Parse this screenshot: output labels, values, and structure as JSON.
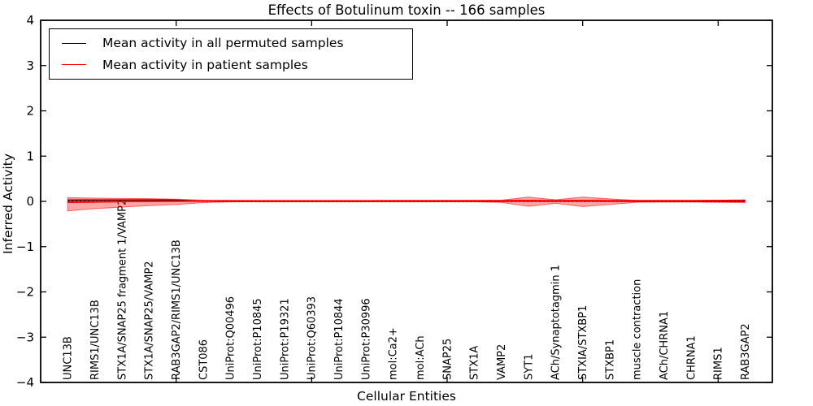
{
  "chart_data": {
    "type": "line",
    "title": "Effects of Botulinum toxin -- 166 samples",
    "xlabel": "Cellular Entities",
    "ylabel": "Inferred Activity",
    "ylim": [
      -4,
      4
    ],
    "xlim": [
      0,
      27
    ],
    "yticks": [
      -4,
      -3,
      -2,
      -1,
      0,
      1,
      2,
      3,
      4
    ],
    "xticks": [
      5,
      10,
      15,
      20,
      25
    ],
    "grid": false,
    "legend_position": "upper left",
    "zero_line": {
      "y": 0,
      "style": "dotted",
      "color": "#000000"
    },
    "categories": [
      "UNC13B",
      "RIMS1/UNC13B",
      "STX1A/SNAP25 fragment 1/VAMP2",
      "STX1A/SNAP25/VAMP2",
      "RAB3GAP2/RIMS1/UNC13B",
      "CST086",
      "UniProt:Q00496",
      "UniProt:P10845",
      "UniProt:P19321",
      "UniProt:Q60393",
      "UniProt:P10844",
      "UniProt:P30996",
      "mol:Ca2+",
      "mol:ACh",
      "SNAP25",
      "STX1A",
      "VAMP2",
      "SYT1",
      "ACh/Synaptotagmin 1",
      "STXIA/STXBP1",
      "STXBP1",
      "muscle contraction",
      "ACh/CHRNA1",
      "CHRNA1",
      "RIMS1",
      "RAB3GAP2"
    ],
    "series": [
      {
        "name": "Mean activity in all permuted samples",
        "color": "#000000",
        "band_color": "rgba(90,90,90,0.45)",
        "values": [
          0.025,
          0.028,
          0.03,
          0.033,
          0.03,
          0.006,
          0.002,
          0.002,
          0.002,
          0.002,
          0.002,
          0.002,
          0.002,
          0.002,
          0.002,
          0.002,
          0.003,
          0.005,
          0.004,
          0.005,
          0.004,
          0.002,
          0.002,
          0.002,
          0.002,
          0.002
        ],
        "band_hi": [
          0.058,
          0.054,
          0.05,
          0.05,
          0.044,
          0.014,
          0.007,
          0.007,
          0.007,
          0.007,
          0.007,
          0.007,
          0.007,
          0.007,
          0.007,
          0.007,
          0.009,
          0.016,
          0.012,
          0.015,
          0.012,
          0.008,
          0.007,
          0.007,
          0.008,
          0.009
        ],
        "band_lo": [
          -0.015,
          -0.008,
          -0.003,
          0.0,
          -0.002,
          -0.004,
          -0.004,
          -0.004,
          -0.004,
          -0.004,
          -0.004,
          -0.004,
          -0.004,
          -0.004,
          -0.004,
          -0.004,
          -0.005,
          -0.008,
          -0.006,
          -0.007,
          -0.006,
          -0.004,
          -0.004,
          -0.004,
          -0.004,
          -0.005
        ]
      },
      {
        "name": "Mean activity in patient samples",
        "color": "#ff0000",
        "band_color": "rgba(255,0,0,0.35)",
        "band_edge_color": "rgba(255,0,0,0.55)",
        "values": [
          -0.02,
          -0.012,
          -0.005,
          0.0,
          0.005,
          0.01,
          0.013,
          0.013,
          0.014,
          0.014,
          0.014,
          0.014,
          0.015,
          0.015,
          0.015,
          0.015,
          0.016,
          0.018,
          0.016,
          0.018,
          0.016,
          0.015,
          0.015,
          0.016,
          0.018,
          0.022
        ],
        "band_hi": [
          0.08,
          0.072,
          0.065,
          0.06,
          0.05,
          0.026,
          0.02,
          0.018,
          0.018,
          0.018,
          0.018,
          0.018,
          0.018,
          0.018,
          0.018,
          0.018,
          0.026,
          0.095,
          0.036,
          0.095,
          0.055,
          0.022,
          0.02,
          0.02,
          0.026,
          0.032
        ],
        "band_lo": [
          -0.21,
          -0.16,
          -0.125,
          -0.095,
          -0.07,
          -0.026,
          -0.012,
          -0.012,
          -0.012,
          -0.012,
          -0.012,
          -0.012,
          -0.012,
          -0.012,
          -0.012,
          -0.012,
          -0.022,
          -0.11,
          -0.042,
          -0.115,
          -0.068,
          -0.02,
          -0.015,
          -0.015,
          -0.022,
          -0.028
        ]
      }
    ]
  }
}
